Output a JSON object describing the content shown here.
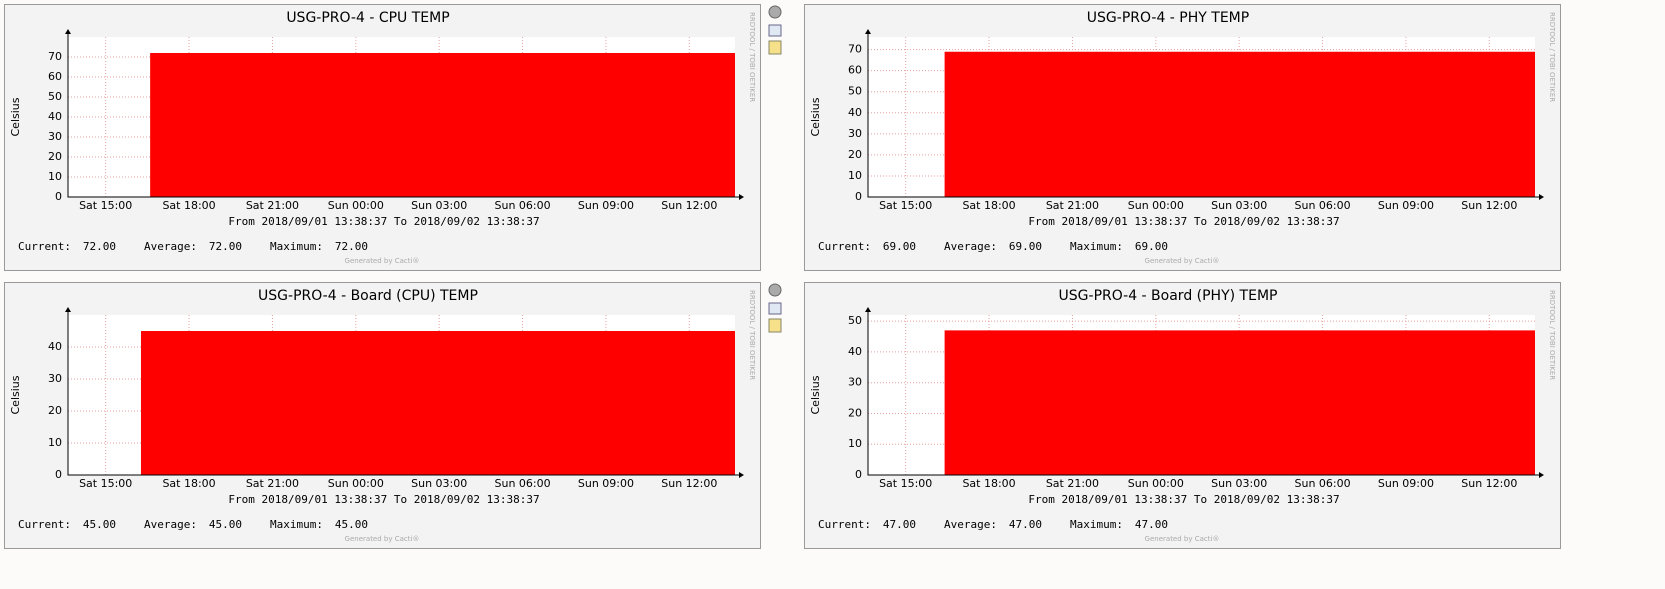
{
  "chart_data": [
    {
      "type": "area",
      "title": "USG-PRO-4 - CPU TEMP",
      "y_label": "Celsius",
      "watermark": "RRDTOOL / TOBI OETIKER",
      "time_range": "From 2018/09/01 13:38:37 To 2018/09/02 13:38:37",
      "footer": "Generated by Cacti®",
      "x": [
        16.6,
        37.644
      ],
      "values": [
        72,
        72
      ],
      "color": "#ff0000",
      "xlim": [
        13.644,
        37.644
      ],
      "ylim": [
        0,
        80
      ],
      "yticks": [
        0,
        10,
        20,
        30,
        40,
        50,
        60,
        70
      ],
      "xticks": [
        {
          "value": 15,
          "label": "Sat 15:00"
        },
        {
          "value": 18,
          "label": "Sat 18:00"
        },
        {
          "value": 21,
          "label": "Sat 21:00"
        },
        {
          "value": 24,
          "label": "Sun 00:00"
        },
        {
          "value": 27,
          "label": "Sun 03:00"
        },
        {
          "value": 30,
          "label": "Sun 06:00"
        },
        {
          "value": 33,
          "label": "Sun 09:00"
        },
        {
          "value": 36,
          "label": "Sun 12:00"
        }
      ],
      "grid": true,
      "legend": [
        {
          "label": "Current:",
          "value": "72.00"
        },
        {
          "label": "Average:",
          "value": "72.00"
        },
        {
          "label": "Maximum:",
          "value": "72.00"
        }
      ]
    },
    {
      "type": "area",
      "title": "USG-PRO-4 - PHY TEMP",
      "y_label": "Celsius",
      "watermark": "RRDTOOL / TOBI OETIKER",
      "time_range": "From 2018/09/01 13:38:37 To 2018/09/02 13:38:37",
      "footer": "Generated by Cacti®",
      "x": [
        16.4,
        37.644
      ],
      "values": [
        69,
        69
      ],
      "color": "#ff0000",
      "xlim": [
        13.644,
        37.644
      ],
      "ylim": [
        0,
        76
      ],
      "yticks": [
        0,
        10,
        20,
        30,
        40,
        50,
        60,
        70
      ],
      "xticks": [
        {
          "value": 15,
          "label": "Sat 15:00"
        },
        {
          "value": 18,
          "label": "Sat 18:00"
        },
        {
          "value": 21,
          "label": "Sat 21:00"
        },
        {
          "value": 24,
          "label": "Sun 00:00"
        },
        {
          "value": 27,
          "label": "Sun 03:00"
        },
        {
          "value": 30,
          "label": "Sun 06:00"
        },
        {
          "value": 33,
          "label": "Sun 09:00"
        },
        {
          "value": 36,
          "label": "Sun 12:00"
        }
      ],
      "grid": true,
      "legend": [
        {
          "label": "Current:",
          "value": "69.00"
        },
        {
          "label": "Average:",
          "value": "69.00"
        },
        {
          "label": "Maximum:",
          "value": "69.00"
        }
      ]
    },
    {
      "type": "area",
      "title": "USG-PRO-4 - Board (CPU) TEMP",
      "y_label": "Celsius",
      "watermark": "RRDTOOL / TOBI OETIKER",
      "time_range": "From 2018/09/01 13:38:37 To 2018/09/02 13:38:37",
      "footer": "Generated by Cacti®",
      "x": [
        16.27,
        37.644
      ],
      "values": [
        45,
        45
      ],
      "color": "#ff0000",
      "xlim": [
        13.644,
        37.644
      ],
      "ylim": [
        0,
        50
      ],
      "yticks": [
        0,
        10,
        20,
        30,
        40
      ],
      "xticks": [
        {
          "value": 15,
          "label": "Sat 15:00"
        },
        {
          "value": 18,
          "label": "Sat 18:00"
        },
        {
          "value": 21,
          "label": "Sat 21:00"
        },
        {
          "value": 24,
          "label": "Sun 00:00"
        },
        {
          "value": 27,
          "label": "Sun 03:00"
        },
        {
          "value": 30,
          "label": "Sun 06:00"
        },
        {
          "value": 33,
          "label": "Sun 09:00"
        },
        {
          "value": 36,
          "label": "Sun 12:00"
        }
      ],
      "grid": true,
      "legend": [
        {
          "label": "Current:",
          "value": "45.00"
        },
        {
          "label": "Average:",
          "value": "45.00"
        },
        {
          "label": "Maximum:",
          "value": "45.00"
        }
      ]
    },
    {
      "type": "area",
      "title": "USG-PRO-4 - Board (PHY) TEMP",
      "y_label": "Celsius",
      "watermark": "RRDTOOL / TOBI OETIKER",
      "time_range": "From 2018/09/01 13:38:37 To 2018/09/02 13:38:37",
      "footer": "Generated by Cacti®",
      "x": [
        16.4,
        37.644
      ],
      "values": [
        47,
        47
      ],
      "color": "#ff0000",
      "xlim": [
        13.644,
        37.644
      ],
      "ylim": [
        0,
        52
      ],
      "yticks": [
        0,
        10,
        20,
        30,
        40,
        50
      ],
      "xticks": [
        {
          "value": 15,
          "label": "Sat 15:00"
        },
        {
          "value": 18,
          "label": "Sat 18:00"
        },
        {
          "value": 21,
          "label": "Sat 21:00"
        },
        {
          "value": 24,
          "label": "Sun 00:00"
        },
        {
          "value": 27,
          "label": "Sun 03:00"
        },
        {
          "value": 30,
          "label": "Sun 06:00"
        },
        {
          "value": 33,
          "label": "Sun 09:00"
        },
        {
          "value": 36,
          "label": "Sun 12:00"
        }
      ],
      "grid": true,
      "legend": [
        {
          "label": "Current:",
          "value": "47.00"
        },
        {
          "label": "Average:",
          "value": "47.00"
        },
        {
          "label": "Maximum:",
          "value": "47.00"
        }
      ]
    }
  ]
}
